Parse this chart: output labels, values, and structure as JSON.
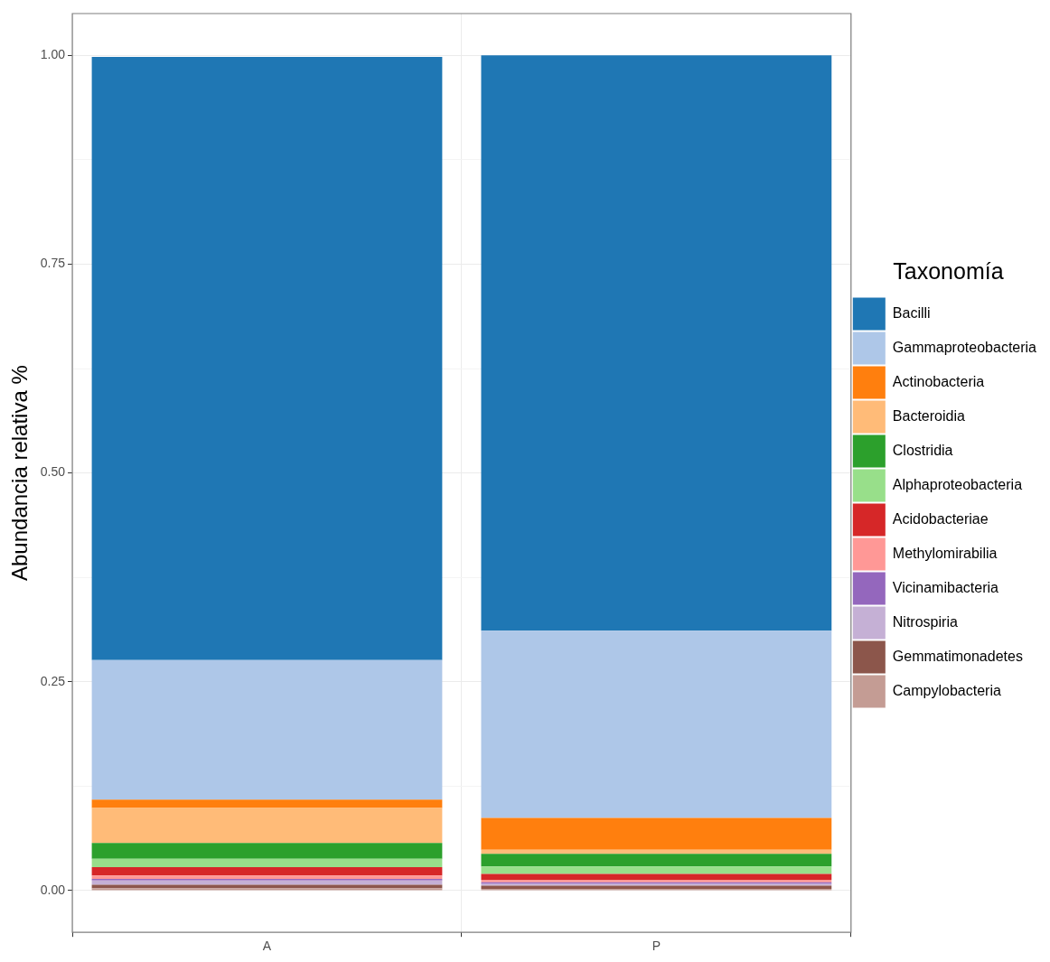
{
  "chart_data": {
    "type": "bar",
    "stacked": true,
    "ylabel": "Abundancia relativa %",
    "legend_title": "Taxonomía",
    "legend": "right",
    "grid": true,
    "categories": [
      "A",
      "P"
    ],
    "ylim": [
      -0.05,
      1.05
    ],
    "yticks": [
      {
        "value": 0,
        "label": "0.00"
      },
      {
        "value": 0.125,
        "label": null
      },
      {
        "value": 0.25,
        "label": "0.25"
      },
      {
        "value": 0.375,
        "label": null
      },
      {
        "value": 0.5,
        "label": "0.50"
      },
      {
        "value": 0.625,
        "label": null
      },
      {
        "value": 0.75,
        "label": "0.75"
      },
      {
        "value": 0.875,
        "label": null
      },
      {
        "value": 1,
        "label": "1.00"
      }
    ],
    "series": [
      {
        "name": "Campylobacteria",
        "color": "#c49c94",
        "values": [
          0.003,
          0.002
        ]
      },
      {
        "name": "Gemmatimonadetes",
        "color": "#8c564b",
        "values": [
          0.004,
          0.004
        ]
      },
      {
        "name": "Nitrospiria",
        "color": "#c5b0d5",
        "values": [
          0.005,
          0.002
        ]
      },
      {
        "name": "Vicinamibacteria",
        "color": "#9467bd",
        "values": [
          0.002,
          0.002
        ]
      },
      {
        "name": "Methylomirabilia",
        "color": "#ff9896",
        "values": [
          0.004,
          0.003
        ]
      },
      {
        "name": "Acidobacteriae",
        "color": "#d62728",
        "values": [
          0.01,
          0.007
        ]
      },
      {
        "name": "Alphaproteobacteria",
        "color": "#98df8a",
        "values": [
          0.01,
          0.009
        ]
      },
      {
        "name": "Clostridia",
        "color": "#2ca02c",
        "values": [
          0.019,
          0.015
        ]
      },
      {
        "name": "Bacteroidia",
        "color": "#ffbb78",
        "values": [
          0.042,
          0.005
        ]
      },
      {
        "name": "Actinobacteria",
        "color": "#ff7f0e",
        "values": [
          0.01,
          0.038
        ]
      },
      {
        "name": "Gammaproteobacteria",
        "color": "#aec7e8",
        "values": [
          0.167,
          0.224
        ]
      },
      {
        "name": "Bacilli",
        "color": "#1f77b4",
        "values": [
          0.722,
          0.689
        ]
      }
    ]
  }
}
